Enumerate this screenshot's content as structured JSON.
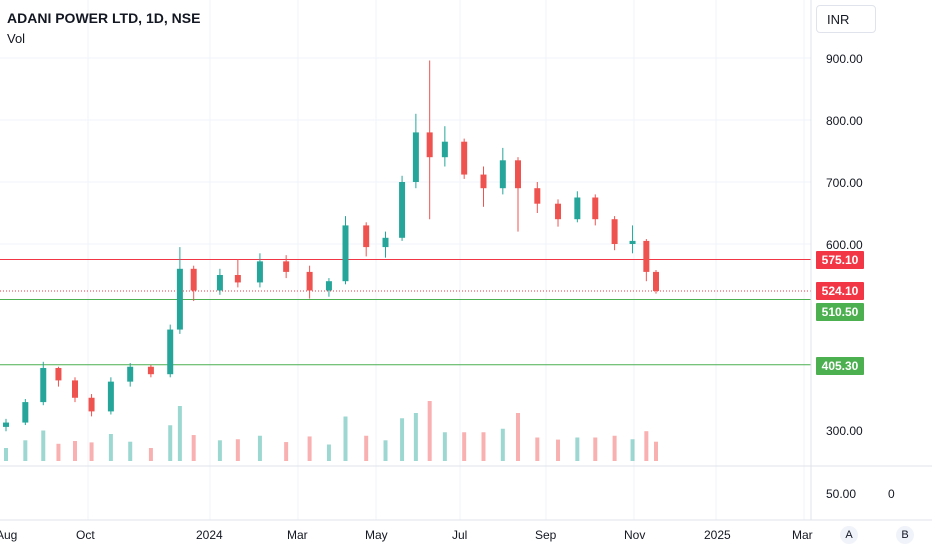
{
  "header": {
    "title": "ADANI POWER LTD, 1D, NSE",
    "volume_label": "Vol",
    "currency": "INR"
  },
  "price_axis_ticks": [
    "900.00",
    "800.00",
    "700.00",
    "600.00",
    "300.00"
  ],
  "volume_axis": {
    "tick": "50.00",
    "zero": "0"
  },
  "time_axis_ticks": [
    "Aug",
    "Oct",
    "2024",
    "Mar",
    "May",
    "Jul",
    "Sep",
    "Nov",
    "2025",
    "Mar"
  ],
  "price_tags": {
    "resistance": "575.10",
    "last": "524.10",
    "support_1": "510.50",
    "support_2": "405.30"
  },
  "corner_buttons": {
    "a": "A",
    "b": "B"
  },
  "colors": {
    "up": "#26a69a",
    "down": "#ef5350",
    "resistance_line": "#f23645",
    "support_line": "#4caf50",
    "last_tag": "#f23645",
    "support_tag": "#4caf50"
  },
  "chart_data": {
    "type": "candlestick",
    "symbol": "ADANI POWER LTD",
    "interval": "1D",
    "exchange": "NSE",
    "ylim": [
      300,
      900
    ],
    "horizontal_levels": [
      575.1,
      510.5,
      405.3
    ],
    "last_price": 524.1,
    "series": [
      {
        "x": "2023-08-01",
        "o": 305,
        "h": 318,
        "l": 298,
        "c": 312
      },
      {
        "x": "2023-08-15",
        "o": 312,
        "h": 350,
        "l": 308,
        "c": 345
      },
      {
        "x": "2023-08-28",
        "o": 345,
        "h": 410,
        "l": 340,
        "c": 400
      },
      {
        "x": "2023-09-08",
        "o": 400,
        "h": 402,
        "l": 370,
        "c": 380
      },
      {
        "x": "2023-09-20",
        "o": 380,
        "h": 385,
        "l": 345,
        "c": 352
      },
      {
        "x": "2023-10-02",
        "o": 352,
        "h": 358,
        "l": 322,
        "c": 330
      },
      {
        "x": "2023-10-16",
        "o": 330,
        "h": 385,
        "l": 325,
        "c": 378
      },
      {
        "x": "2023-10-30",
        "o": 378,
        "h": 408,
        "l": 370,
        "c": 402
      },
      {
        "x": "2023-11-14",
        "o": 402,
        "h": 405,
        "l": 385,
        "c": 390
      },
      {
        "x": "2023-11-28",
        "o": 390,
        "h": 470,
        "l": 385,
        "c": 462
      },
      {
        "x": "2023-12-05",
        "o": 462,
        "h": 595,
        "l": 455,
        "c": 560
      },
      {
        "x": "2023-12-15",
        "o": 560,
        "h": 565,
        "l": 508,
        "c": 525
      },
      {
        "x": "2024-01-03",
        "o": 525,
        "h": 560,
        "l": 518,
        "c": 550
      },
      {
        "x": "2024-01-16",
        "o": 550,
        "h": 575,
        "l": 530,
        "c": 538
      },
      {
        "x": "2024-02-01",
        "o": 538,
        "h": 585,
        "l": 530,
        "c": 572
      },
      {
        "x": "2024-02-20",
        "o": 572,
        "h": 582,
        "l": 545,
        "c": 555
      },
      {
        "x": "2024-03-08",
        "o": 555,
        "h": 565,
        "l": 512,
        "c": 525
      },
      {
        "x": "2024-03-22",
        "o": 525,
        "h": 545,
        "l": 515,
        "c": 540
      },
      {
        "x": "2024-04-03",
        "o": 540,
        "h": 645,
        "l": 535,
        "c": 630
      },
      {
        "x": "2024-04-18",
        "o": 630,
        "h": 635,
        "l": 580,
        "c": 595
      },
      {
        "x": "2024-05-02",
        "o": 595,
        "h": 620,
        "l": 578,
        "c": 610
      },
      {
        "x": "2024-05-14",
        "o": 610,
        "h": 710,
        "l": 605,
        "c": 700
      },
      {
        "x": "2024-05-24",
        "o": 700,
        "h": 810,
        "l": 690,
        "c": 780
      },
      {
        "x": "2024-06-03",
        "o": 780,
        "h": 896,
        "l": 640,
        "c": 740
      },
      {
        "x": "2024-06-14",
        "o": 740,
        "h": 790,
        "l": 725,
        "c": 765
      },
      {
        "x": "2024-06-28",
        "o": 765,
        "h": 770,
        "l": 705,
        "c": 712
      },
      {
        "x": "2024-07-12",
        "o": 712,
        "h": 725,
        "l": 660,
        "c": 690
      },
      {
        "x": "2024-07-26",
        "o": 690,
        "h": 755,
        "l": 680,
        "c": 735
      },
      {
        "x": "2024-08-06",
        "o": 735,
        "h": 740,
        "l": 620,
        "c": 690
      },
      {
        "x": "2024-08-20",
        "o": 690,
        "h": 700,
        "l": 650,
        "c": 665
      },
      {
        "x": "2024-09-04",
        "o": 665,
        "h": 672,
        "l": 628,
        "c": 640
      },
      {
        "x": "2024-09-18",
        "o": 640,
        "h": 685,
        "l": 635,
        "c": 675
      },
      {
        "x": "2024-10-01",
        "o": 675,
        "h": 680,
        "l": 630,
        "c": 640
      },
      {
        "x": "2024-10-15",
        "o": 640,
        "h": 645,
        "l": 590,
        "c": 600
      },
      {
        "x": "2024-10-28",
        "o": 600,
        "h": 630,
        "l": 585,
        "c": 605
      },
      {
        "x": "2024-11-07",
        "o": 605,
        "h": 608,
        "l": 540,
        "c": 555
      },
      {
        "x": "2024-11-14",
        "o": 555,
        "h": 558,
        "l": 520,
        "c": 524.1
      }
    ]
  }
}
